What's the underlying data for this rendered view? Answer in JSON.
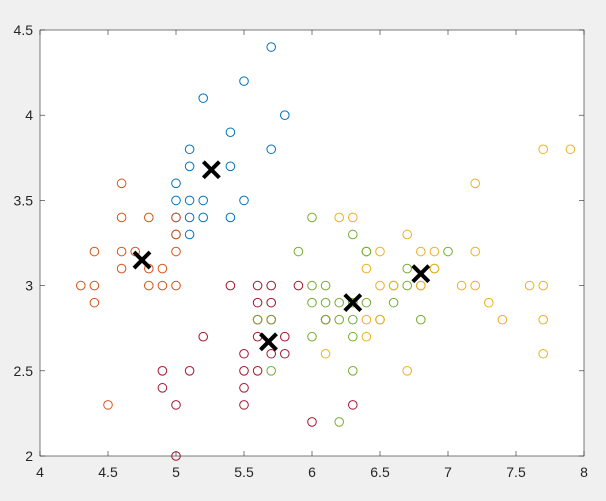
{
  "chart_data": {
    "type": "scatter",
    "title": "",
    "xlabel": "",
    "ylabel": "",
    "xlim": [
      4,
      8
    ],
    "ylim": [
      2,
      4.5
    ],
    "grid": false,
    "x_ticks": [
      "4",
      "4.5",
      "5",
      "5.5",
      "6",
      "6.5",
      "7",
      "7.5",
      "8"
    ],
    "y_ticks": [
      "2",
      "2.5",
      "3",
      "3.5",
      "4",
      "4.5"
    ],
    "colors": {
      "axes_background": "#ffffff",
      "figure_background": "#f0f0f0",
      "axis": "#262626"
    },
    "series": [
      {
        "color": "#0072bd",
        "marker": "o",
        "points": [
          [
            5.7,
            4.4
          ],
          [
            5.5,
            4.2
          ],
          [
            5.2,
            4.1
          ],
          [
            5.8,
            4.0
          ],
          [
            5.4,
            3.9
          ],
          [
            5.1,
            3.8
          ],
          [
            5.7,
            3.8
          ],
          [
            5.1,
            3.7
          ],
          [
            5.4,
            3.7
          ],
          [
            5.0,
            3.6
          ],
          [
            5.0,
            3.5
          ],
          [
            5.1,
            3.5
          ],
          [
            5.2,
            3.5
          ],
          [
            5.5,
            3.5
          ],
          [
            5.0,
            3.4
          ],
          [
            5.1,
            3.4
          ],
          [
            5.2,
            3.4
          ],
          [
            5.4,
            3.4
          ],
          [
            5.0,
            3.3
          ],
          [
            5.1,
            3.3
          ]
        ]
      },
      {
        "color": "#d95319",
        "marker": "o",
        "points": [
          [
            4.6,
            3.6
          ],
          [
            4.6,
            3.4
          ],
          [
            4.8,
            3.4
          ],
          [
            5.0,
            3.4
          ],
          [
            5.0,
            3.3
          ],
          [
            4.4,
            3.2
          ],
          [
            4.6,
            3.2
          ],
          [
            5.0,
            3.2
          ],
          [
            4.6,
            3.1
          ],
          [
            4.7,
            3.2
          ],
          [
            4.9,
            3.1
          ],
          [
            4.8,
            3.0
          ],
          [
            4.3,
            3.0
          ],
          [
            4.4,
            3.0
          ],
          [
            4.8,
            3.1
          ],
          [
            4.9,
            3.0
          ],
          [
            5.0,
            3.0
          ],
          [
            4.4,
            2.9
          ],
          [
            4.5,
            2.3
          ]
        ]
      },
      {
        "color": "#a2142f",
        "marker": "o",
        "points": [
          [
            5.4,
            3.0
          ],
          [
            5.6,
            3.0
          ],
          [
            5.7,
            3.0
          ],
          [
            5.6,
            2.9
          ],
          [
            5.7,
            2.9
          ],
          [
            5.6,
            2.8
          ],
          [
            5.7,
            2.8
          ],
          [
            5.8,
            2.7
          ],
          [
            5.2,
            2.7
          ],
          [
            5.6,
            2.7
          ],
          [
            5.7,
            2.6
          ],
          [
            5.8,
            2.6
          ],
          [
            5.5,
            2.6
          ],
          [
            4.9,
            2.5
          ],
          [
            5.1,
            2.5
          ],
          [
            5.5,
            2.5
          ],
          [
            5.6,
            2.5
          ],
          [
            4.9,
            2.4
          ],
          [
            5.5,
            2.4
          ],
          [
            5.0,
            2.3
          ],
          [
            5.5,
            2.3
          ],
          [
            5.0,
            2.0
          ],
          [
            5.9,
            3.0
          ],
          [
            6.1,
            2.8
          ],
          [
            6.0,
            2.2
          ],
          [
            6.3,
            2.3
          ]
        ]
      },
      {
        "color": "#77ac30",
        "marker": "o",
        "points": [
          [
            6.0,
            3.4
          ],
          [
            6.3,
            3.3
          ],
          [
            5.9,
            3.2
          ],
          [
            6.4,
            3.2
          ],
          [
            6.9,
            3.1
          ],
          [
            7.0,
            3.2
          ],
          [
            6.1,
            3.0
          ],
          [
            6.0,
            3.0
          ],
          [
            6.7,
            3.1
          ],
          [
            6.1,
            2.9
          ],
          [
            6.2,
            2.9
          ],
          [
            6.6,
            2.9
          ],
          [
            6.4,
            2.9
          ],
          [
            6.0,
            2.9
          ],
          [
            6.3,
            2.9
          ],
          [
            6.2,
            2.8
          ],
          [
            6.3,
            2.8
          ],
          [
            5.7,
            2.8
          ],
          [
            6.8,
            2.8
          ],
          [
            6.5,
            2.8
          ],
          [
            5.6,
            2.8
          ],
          [
            6.3,
            2.7
          ],
          [
            6.0,
            2.7
          ],
          [
            6.1,
            2.8
          ],
          [
            5.7,
            2.5
          ],
          [
            6.3,
            2.5
          ],
          [
            6.2,
            2.2
          ],
          [
            6.7,
            3.0
          ],
          [
            6.8,
            3.0
          ],
          [
            6.6,
            3.0
          ],
          [
            6.4,
            3.2
          ]
        ]
      },
      {
        "color": "#edb120",
        "marker": "o",
        "points": [
          [
            7.7,
            3.8
          ],
          [
            7.9,
            3.8
          ],
          [
            7.2,
            3.6
          ],
          [
            6.2,
            3.4
          ],
          [
            6.3,
            3.4
          ],
          [
            6.7,
            3.3
          ],
          [
            6.4,
            3.1
          ],
          [
            6.5,
            3.2
          ],
          [
            6.8,
            3.2
          ],
          [
            6.9,
            3.2
          ],
          [
            7.2,
            3.2
          ],
          [
            6.9,
            3.1
          ],
          [
            7.1,
            3.0
          ],
          [
            7.2,
            3.0
          ],
          [
            7.6,
            3.0
          ],
          [
            7.7,
            3.0
          ],
          [
            6.5,
            3.0
          ],
          [
            6.8,
            3.0
          ],
          [
            7.3,
            2.9
          ],
          [
            6.4,
            2.8
          ],
          [
            6.5,
            2.8
          ],
          [
            7.4,
            2.8
          ],
          [
            7.7,
            2.8
          ],
          [
            6.4,
            2.7
          ],
          [
            6.1,
            2.6
          ],
          [
            7.7,
            2.6
          ],
          [
            6.7,
            2.5
          ],
          [
            6.6,
            3.0
          ]
        ]
      }
    ],
    "centroids": {
      "color": "#000000",
      "marker": "x",
      "points": [
        [
          5.26,
          3.68
        ],
        [
          4.75,
          3.15
        ],
        [
          5.68,
          2.67
        ],
        [
          6.3,
          2.9
        ],
        [
          6.8,
          3.07
        ]
      ]
    }
  }
}
